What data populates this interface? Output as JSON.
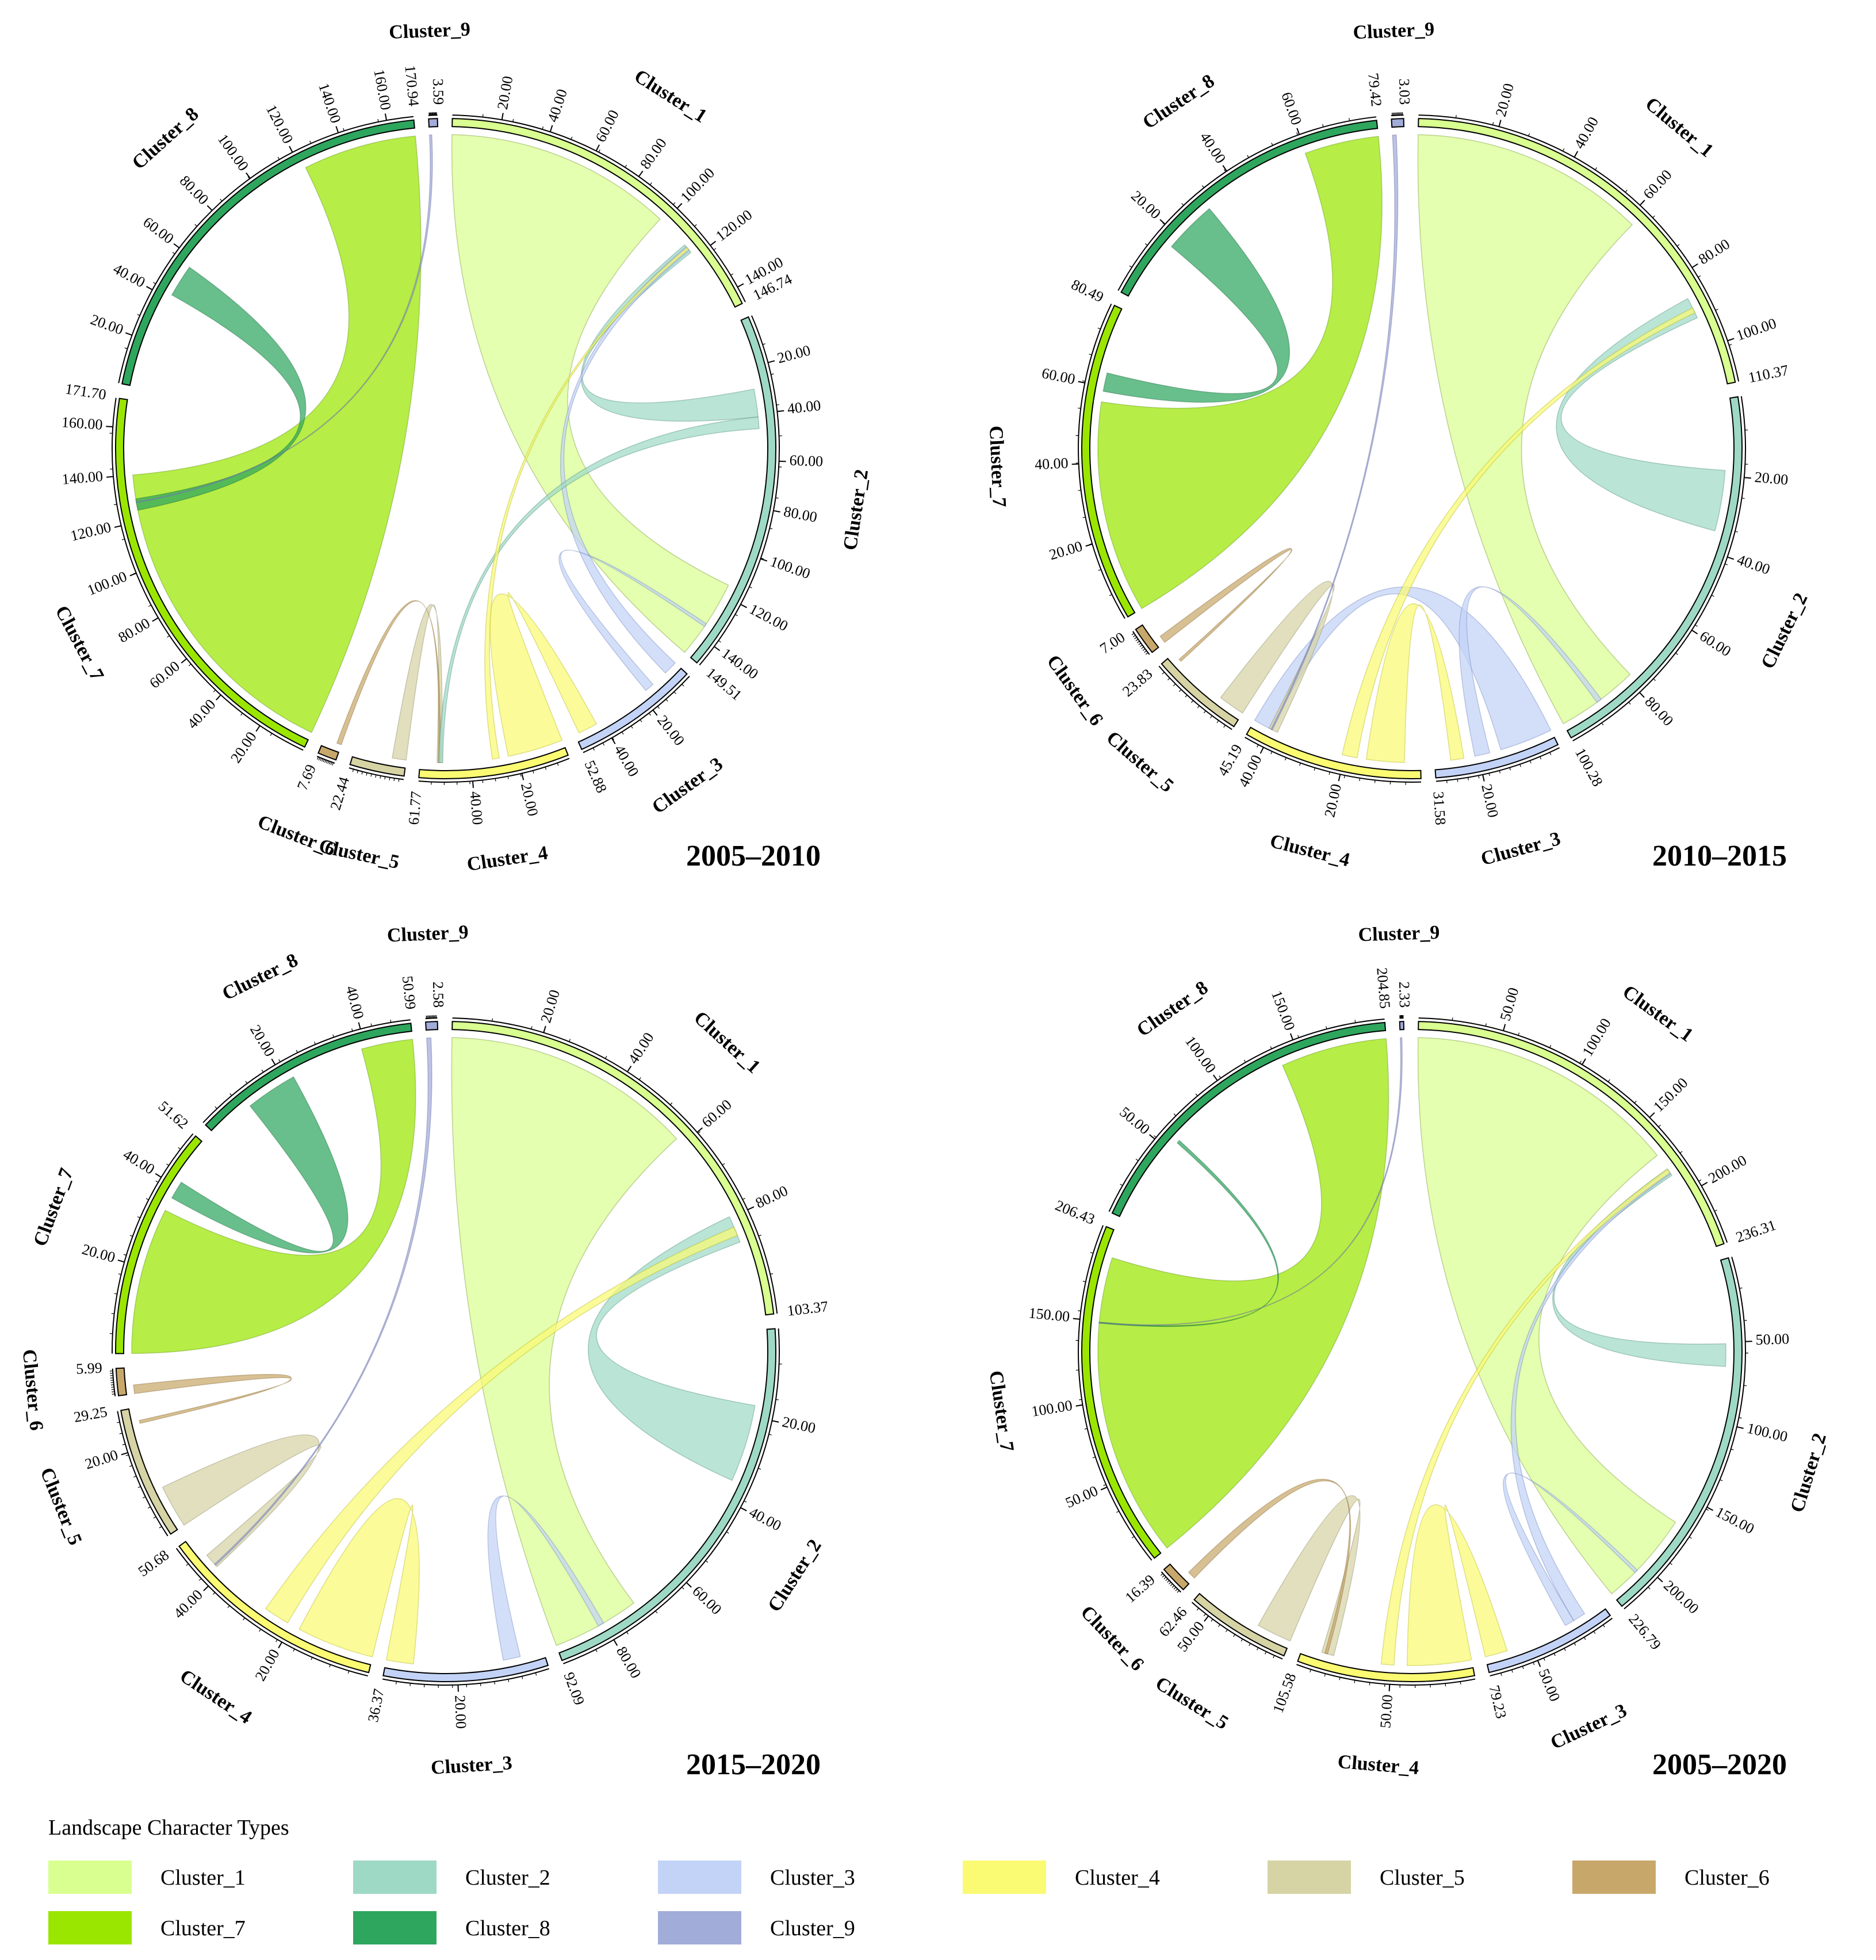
{
  "legend": {
    "title": "Landscape Character Types",
    "items": [
      {
        "name": "Cluster_1",
        "color": "#d9ff90"
      },
      {
        "name": "Cluster_2",
        "color": "#9ed9c6"
      },
      {
        "name": "Cluster_3",
        "color": "#c2d3f7"
      },
      {
        "name": "Cluster_4",
        "color": "#fafa73"
      },
      {
        "name": "Cluster_5",
        "color": "#d6d3a5"
      },
      {
        "name": "Cluster_6",
        "color": "#c8a86a"
      },
      {
        "name": "Cluster_7",
        "color": "#9ae600"
      },
      {
        "name": "Cluster_8",
        "color": "#2ea65e"
      },
      {
        "name": "Cluster_9",
        "color": "#a2acd9"
      }
    ]
  },
  "chart_data": [
    {
      "type": "chord",
      "title": "2005–2010",
      "order": [
        "Cluster_1",
        "Cluster_2",
        "Cluster_3",
        "Cluster_4",
        "Cluster_5",
        "Cluster_6",
        "Cluster_7",
        "Cluster_8",
        "Cluster_9"
      ],
      "totals": [
        146.74,
        149.51,
        52.88,
        61.77,
        22.44,
        7.69,
        171.7,
        170.94,
        3.59
      ],
      "total_labels": [
        "146.74",
        "149.51",
        "52.88",
        "61.77",
        "22.44",
        "7.69",
        "171.70",
        "170.94",
        "3.59"
      ],
      "ticks": [
        [
          "20.00",
          "40.00",
          "60.00",
          "80.00",
          "100.00",
          "120.00",
          "140.00"
        ],
        [
          "20.00",
          "40.00",
          "60.00",
          "80.00",
          "100.00",
          "120.00",
          "140.00"
        ],
        [
          "20.00",
          "40.00"
        ],
        [
          "20.00",
          "40.00"
        ],
        [],
        [],
        [
          "20.00",
          "40.00",
          "60.00",
          "80.00",
          "100.00",
          "120.00",
          "140.00",
          "160.00"
        ],
        [
          "20.00",
          "40.00",
          "60.00",
          "80.00",
          "100.00",
          "120.00",
          "140.00",
          "160.00"
        ],
        []
      ],
      "flows": [
        {
          "from": "Cluster_1",
          "to": "Cluster_2",
          "value": 98
        },
        {
          "from": "Cluster_7",
          "to": "Cluster_8",
          "value": 140
        },
        {
          "from": "Cluster_2",
          "to": "Cluster_1",
          "value": 12
        },
        {
          "from": "Cluster_3",
          "to": "Cluster_1",
          "value": 6
        },
        {
          "from": "Cluster_4",
          "to": "Cluster_3",
          "value": 24
        },
        {
          "from": "Cluster_8",
          "to": "Cluster_7",
          "value": 14
        },
        {
          "from": "Cluster_5",
          "to": "Cluster_4",
          "value": 6
        },
        {
          "from": "Cluster_6",
          "to": "Cluster_4",
          "value": 2
        },
        {
          "from": "Cluster_2",
          "to": "Cluster_4",
          "value": 5
        },
        {
          "from": "Cluster_3",
          "to": "Cluster_2",
          "value": 4
        },
        {
          "from": "Cluster_9",
          "to": "Cluster_7",
          "value": 1
        },
        {
          "from": "Cluster_4",
          "to": "Cluster_1",
          "value": 3
        }
      ]
    },
    {
      "type": "chord",
      "title": "2010–2015",
      "order": [
        "Cluster_1",
        "Cluster_2",
        "Cluster_3",
        "Cluster_4",
        "Cluster_5",
        "Cluster_6",
        "Cluster_7",
        "Cluster_8",
        "Cluster_9"
      ],
      "totals": [
        110.37,
        100.28,
        31.58,
        45.19,
        23.83,
        7.0,
        80.49,
        79.42,
        3.03
      ],
      "total_labels": [
        "110.37",
        "100.28",
        "31.58",
        "45.19",
        "23.83",
        "7.00",
        "80.49",
        "79.42",
        "3.03"
      ],
      "ticks": [
        [
          "20.00",
          "40.00",
          "60.00",
          "80.00",
          "100.00"
        ],
        [
          "20.00",
          "40.00",
          "60.00",
          "80.00"
        ],
        [
          "20.00"
        ],
        [
          "20.00",
          "40.00"
        ],
        [],
        [],
        [
          "20.00",
          "40.00",
          "60.00"
        ],
        [
          "20.00",
          "40.00",
          "60.00"
        ],
        []
      ],
      "flows": [
        {
          "from": "Cluster_1",
          "to": "Cluster_2",
          "value": 62
        },
        {
          "from": "Cluster_7",
          "to": "Cluster_8",
          "value": 56
        },
        {
          "from": "Cluster_2",
          "to": "Cluster_1",
          "value": 16
        },
        {
          "from": "Cluster_3",
          "to": "Cluster_4",
          "value": 14
        },
        {
          "from": "Cluster_4",
          "to": "Cluster_3",
          "value": 10
        },
        {
          "from": "Cluster_8",
          "to": "Cluster_7",
          "value": 14
        },
        {
          "from": "Cluster_5",
          "to": "Cluster_4",
          "value": 7
        },
        {
          "from": "Cluster_6",
          "to": "Cluster_5",
          "value": 2
        },
        {
          "from": "Cluster_3",
          "to": "Cluster_2",
          "value": 4
        },
        {
          "from": "Cluster_9",
          "to": "Cluster_4",
          "value": 1
        },
        {
          "from": "Cluster_4",
          "to": "Cluster_1",
          "value": 4
        }
      ]
    },
    {
      "type": "chord",
      "title": "2015–2020",
      "order": [
        "Cluster_1",
        "Cluster_2",
        "Cluster_3",
        "Cluster_4",
        "Cluster_5",
        "Cluster_6",
        "Cluster_7",
        "Cluster_8",
        "Cluster_9"
      ],
      "totals": [
        103.37,
        92.09,
        36.37,
        50.68,
        29.25,
        5.99,
        51.62,
        50.99,
        2.58
      ],
      "total_labels": [
        "103.37",
        "92.09",
        "36.37",
        "50.68",
        "29.25",
        "5.99",
        "51.62",
        "50.99",
        "2.58"
      ],
      "ticks": [
        [
          "20.00",
          "40.00",
          "60.00",
          "80.00"
        ],
        [
          "20.00",
          "40.00",
          "60.00",
          "80.00"
        ],
        [
          "20.00"
        ],
        [
          "20.00",
          "40.00"
        ],
        [
          "20.00"
        ],
        [],
        [
          "20.00",
          "40.00"
        ],
        [
          "20.00",
          "40.00"
        ],
        []
      ],
      "flows": [
        {
          "from": "Cluster_1",
          "to": "Cluster_2",
          "value": 58
        },
        {
          "from": "Cluster_7",
          "to": "Cluster_8",
          "value": 34
        },
        {
          "from": "Cluster_2",
          "to": "Cluster_1",
          "value": 18
        },
        {
          "from": "Cluster_4",
          "to": "Cluster_3",
          "value": 18
        },
        {
          "from": "Cluster_8",
          "to": "Cluster_7",
          "value": 12
        },
        {
          "from": "Cluster_5",
          "to": "Cluster_4",
          "value": 10
        },
        {
          "from": "Cluster_4",
          "to": "Cluster_1",
          "value": 6
        },
        {
          "from": "Cluster_6",
          "to": "Cluster_5",
          "value": 2
        },
        {
          "from": "Cluster_3",
          "to": "Cluster_2",
          "value": 4
        },
        {
          "from": "Cluster_9",
          "to": "Cluster_4",
          "value": 1
        }
      ]
    },
    {
      "type": "chord",
      "title": "2005–2020",
      "order": [
        "Cluster_1",
        "Cluster_2",
        "Cluster_3",
        "Cluster_4",
        "Cluster_5",
        "Cluster_6",
        "Cluster_7",
        "Cluster_8",
        "Cluster_9"
      ],
      "totals": [
        236.31,
        226.79,
        79.23,
        105.58,
        62.46,
        16.39,
        206.43,
        204.85,
        2.33
      ],
      "total_labels": [
        "236.31",
        "226.79",
        "79.23",
        "105.58",
        "62.46",
        "16.39",
        "206.43",
        "204.85",
        "2.33"
      ],
      "ticks": [
        [
          "50.00",
          "100.00",
          "150.00",
          "200.00"
        ],
        [
          "50.00",
          "100.00",
          "150.00",
          "200.00"
        ],
        [
          "50.00"
        ],
        [
          "50.00"
        ],
        [
          "50.00"
        ],
        [],
        [
          "50.00",
          "100.00",
          "150.00"
        ],
        [
          "50.00",
          "100.00",
          "150.00"
        ],
        []
      ],
      "flows": [
        {
          "from": "Cluster_1",
          "to": "Cluster_2",
          "value": 170
        },
        {
          "from": "Cluster_7",
          "to": "Cluster_8",
          "value": 190
        },
        {
          "from": "Cluster_2",
          "to": "Cluster_1",
          "value": 14
        },
        {
          "from": "Cluster_4",
          "to": "Cluster_3",
          "value": 40
        },
        {
          "from": "Cluster_3",
          "to": "Cluster_1",
          "value": 8
        },
        {
          "from": "Cluster_5",
          "to": "Cluster_4",
          "value": 22
        },
        {
          "from": "Cluster_6",
          "to": "Cluster_4",
          "value": 5
        },
        {
          "from": "Cluster_4",
          "to": "Cluster_1",
          "value": 8
        },
        {
          "from": "Cluster_3",
          "to": "Cluster_2",
          "value": 6
        },
        {
          "from": "Cluster_8",
          "to": "Cluster_7",
          "value": 2
        },
        {
          "from": "Cluster_9",
          "to": "Cluster_7",
          "value": 1
        }
      ]
    }
  ]
}
